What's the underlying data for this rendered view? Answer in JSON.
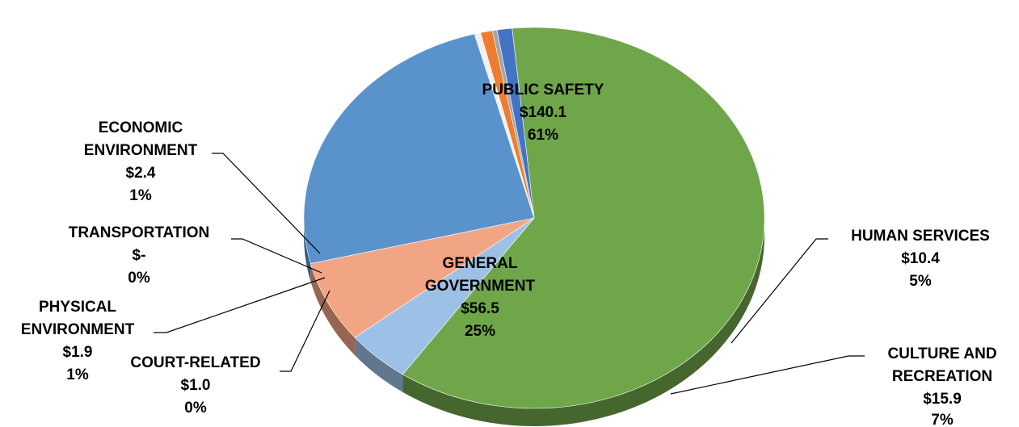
{
  "chart_data": {
    "type": "pie",
    "title": "",
    "slices": [
      {
        "label_lines": [
          "PUBLIC SAFETY"
        ],
        "value_label": "$140.1",
        "pct_label": "61%",
        "value": 140.1,
        "color": "#6fa64a"
      },
      {
        "label_lines": [
          "HUMAN SERVICES"
        ],
        "value_label": "$10.4",
        "pct_label": "5%",
        "value": 10.4,
        "color": "#9dc0e6"
      },
      {
        "label_lines": [
          "CULTURE AND",
          "RECREATION"
        ],
        "value_label": "$15.9",
        "pct_label": "7%",
        "value": 15.9,
        "color": "#f2a584"
      },
      {
        "label_lines": [
          "GENERAL",
          "GOVERNMENT"
        ],
        "value_label": "$56.5",
        "pct_label": "25%",
        "value": 56.5,
        "color": "#5a93cc"
      },
      {
        "label_lines": [
          "COURT-RELATED"
        ],
        "value_label": "$1.0",
        "pct_label": "0%",
        "value": 1.0,
        "color": "#f0f0f0"
      },
      {
        "label_lines": [
          "PHYSICAL",
          "ENVIRONMENT"
        ],
        "value_label": "$1.9",
        "pct_label": "1%",
        "value": 1.9,
        "color": "#ed7d31"
      },
      {
        "label_lines": [
          "TRANSPORTATION"
        ],
        "value_label": "$-",
        "pct_label": "0%",
        "value": 0.0,
        "color": "#a5a5a5"
      },
      {
        "label_lines": [
          "ECONOMIC",
          "ENVIRONMENT"
        ],
        "value_label": "$2.4",
        "pct_label": "1%",
        "value": 2.4,
        "color": "#4472c4"
      }
    ]
  }
}
